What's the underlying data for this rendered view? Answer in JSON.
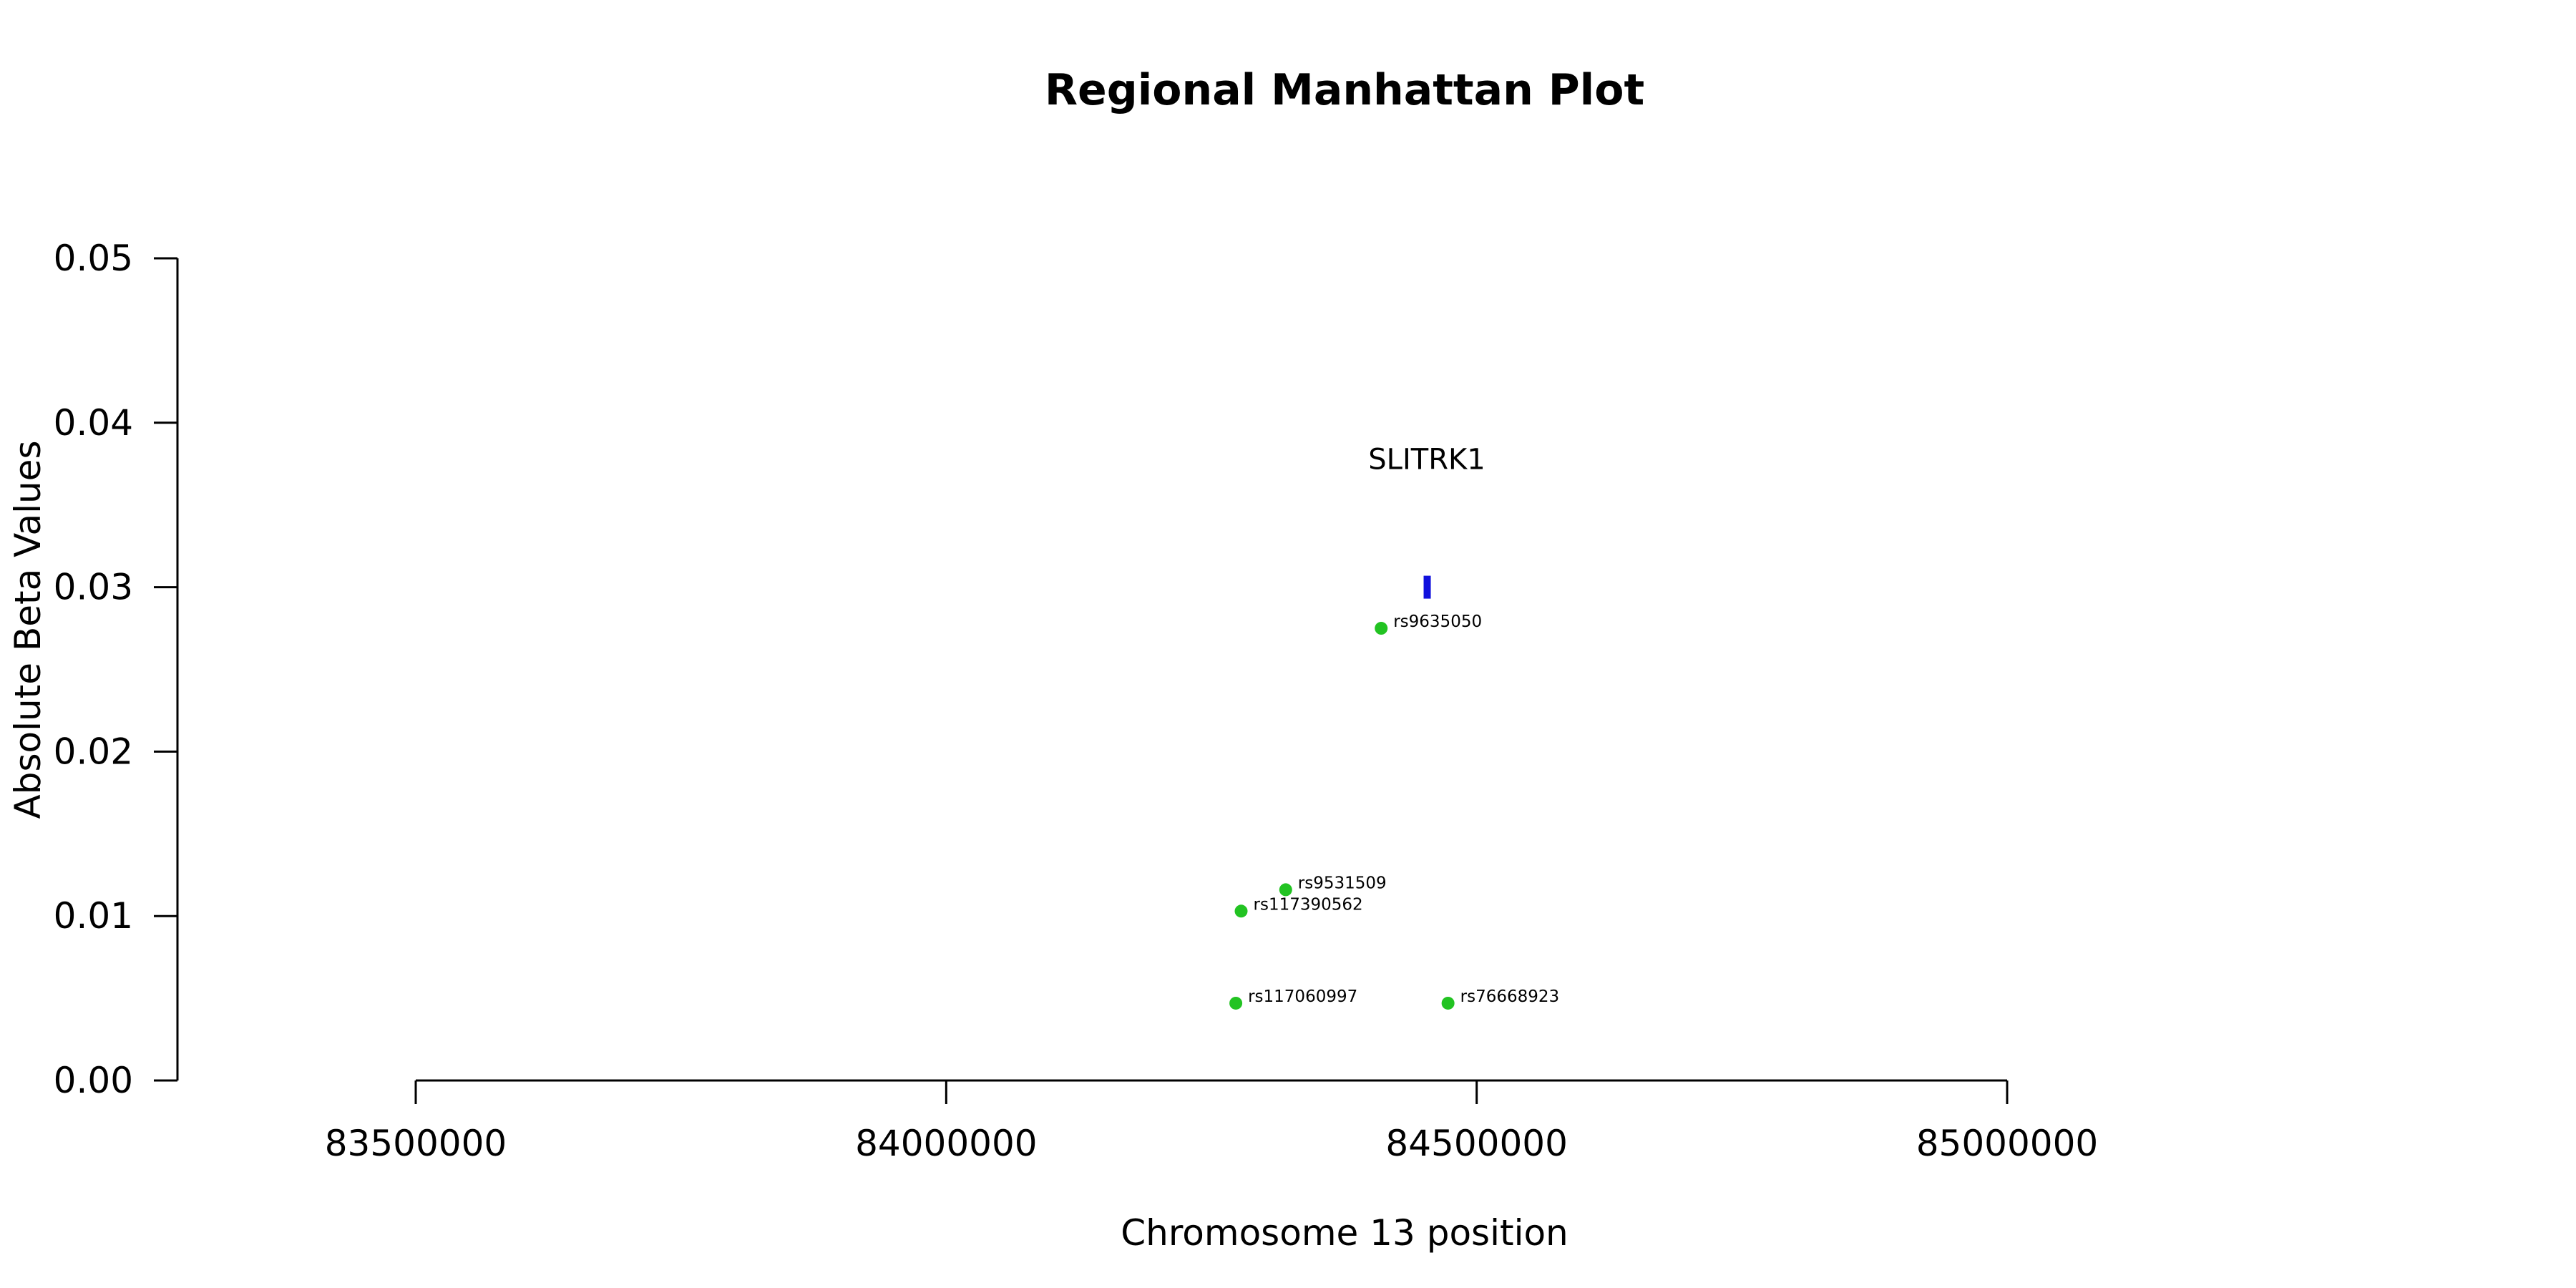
{
  "chart_data": {
    "type": "scatter",
    "title": "Regional Manhattan Plot",
    "xlabel": "Chromosome 13 position",
    "ylabel": "Absolute Beta Values",
    "xlim": [
      83500000,
      85000000
    ],
    "ylim": [
      0,
      0.05
    ],
    "x_ticks": [
      83500000,
      84000000,
      84500000,
      85000000
    ],
    "y_ticks": [
      "0.00",
      "0.01",
      "0.02",
      "0.03",
      "0.04",
      "0.05"
    ],
    "grid": false,
    "point_color": "#22c322",
    "gene_color": "#1010dd",
    "points": [
      {
        "snp": "rs9635050",
        "x": 84410000,
        "y": 0.0275
      },
      {
        "snp": "rs9531509",
        "x": 84320000,
        "y": 0.0116
      },
      {
        "snp": "rs117390562",
        "x": 84278000,
        "y": 0.0103
      },
      {
        "snp": "rs117060997",
        "x": 84273000,
        "y": 0.0047
      },
      {
        "snp": "rs76668923",
        "x": 84473000,
        "y": 0.0047
      }
    ],
    "genes": [
      {
        "name": "SLITRK1",
        "start": 84450000,
        "end": 84456000,
        "y": 0.03
      }
    ]
  }
}
